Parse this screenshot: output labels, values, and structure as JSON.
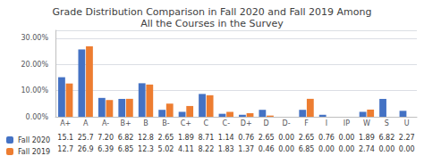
{
  "chart_data": {
    "type": "bar",
    "title": "Grade Distribution Comparison in Fall 2020 and Fall 2019 Among\nAll the Courses in the Survey",
    "categories": [
      "A+",
      "A",
      "A-",
      "B+",
      "B",
      "B-",
      "C+",
      "C",
      "C-",
      "D+",
      "D",
      "D-",
      "F",
      "I",
      "IP",
      "W",
      "S",
      "U"
    ],
    "series": [
      {
        "name": "Fall 2020",
        "color": "#4472C4",
        "values": [
          15.1,
          25.7,
          7.2,
          6.82,
          12.8,
          2.65,
          1.89,
          8.71,
          1.14,
          0.76,
          2.65,
          0.0,
          2.65,
          0.76,
          0.0,
          1.89,
          6.82,
          2.27
        ],
        "value_labels": [
          "15.1",
          "25.7",
          "7.20",
          "6.82",
          "12.8",
          "2.65",
          "1.89",
          "8.71",
          "1.14",
          "0.76",
          "2.65",
          "0.00",
          "2.65",
          "0.76",
          "0.00",
          "1.89",
          "6.82",
          "2.27"
        ]
      },
      {
        "name": "Fall 2019",
        "color": "#ED7D31",
        "values": [
          12.7,
          26.9,
          6.39,
          6.85,
          12.3,
          5.02,
          4.11,
          8.22,
          1.83,
          1.37,
          0.46,
          0.0,
          6.85,
          0.0,
          0.0,
          2.74,
          0.0,
          0.0
        ],
        "value_labels": [
          "12.7",
          "26.9",
          "6.39",
          "6.85",
          "12.3",
          "5.02",
          "4.11",
          "8.22",
          "1.83",
          "1.37",
          "0.46",
          "0.00",
          "6.85",
          "0.00",
          "0.00",
          "2.74",
          "0.00",
          "0.00"
        ]
      }
    ],
    "ylim": [
      0,
      33
    ],
    "yticks": [
      {
        "value": 0,
        "label": "0.00%"
      },
      {
        "value": 10,
        "label": "10.00%"
      },
      {
        "value": 20,
        "label": "20.00%"
      },
      {
        "value": 30,
        "label": "30.00%"
      }
    ],
    "grid": true,
    "legend": "lower left"
  }
}
